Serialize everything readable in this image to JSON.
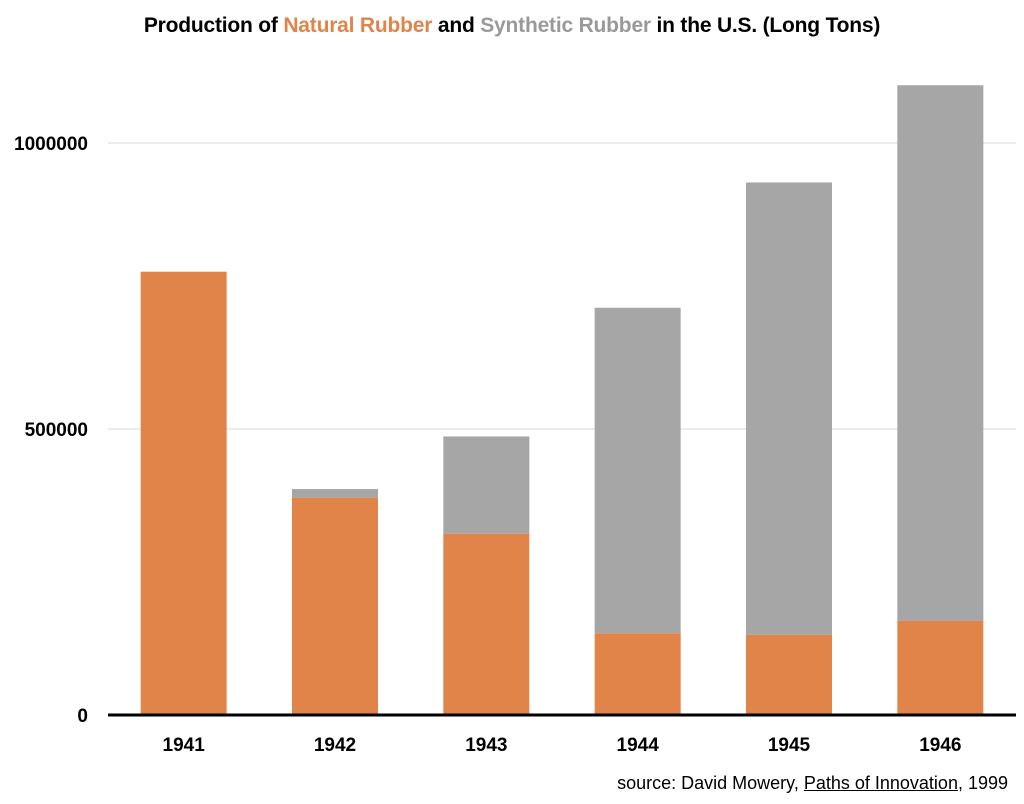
{
  "title": {
    "prefix": "Production of ",
    "natural_term": "Natural Rubber",
    "middle": " and ",
    "synthetic_term": "Synthetic Rubber",
    "suffix": " in the U.S. (Long Tons)"
  },
  "source": {
    "prefix": "source: David Mowery, ",
    "book": "Paths of Innovation",
    "suffix": ", 1999"
  },
  "colors": {
    "natural": "#E0844A",
    "synthetic": "#A6A6A6",
    "grid": "#D9D9D9",
    "axis": "#000000"
  },
  "chart_data": {
    "type": "bar",
    "stacked": true,
    "categories": [
      "1941",
      "1942",
      "1943",
      "1944",
      "1945",
      "1946"
    ],
    "series": [
      {
        "name": "Natural Rubber",
        "values": [
          775000,
          380000,
          317000,
          143000,
          140000,
          165000
        ]
      },
      {
        "name": "Synthetic Rubber",
        "values": [
          0,
          15000,
          170000,
          569000,
          791000,
          936000
        ]
      }
    ],
    "yticks": [
      0,
      500000,
      1000000
    ],
    "ylim": [
      0,
      1100000
    ],
    "grid": true
  }
}
